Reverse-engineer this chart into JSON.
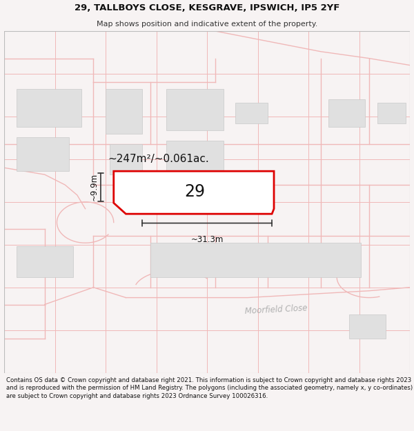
{
  "title_line1": "29, TALLBOYS CLOSE, KESGRAVE, IPSWICH, IP5 2YF",
  "title_line2": "Map shows position and indicative extent of the property.",
  "footer_text": "Contains OS data © Crown copyright and database right 2021. This information is subject to Crown copyright and database rights 2023 and is reproduced with the permission of HM Land Registry. The polygons (including the associated geometry, namely x, y co-ordinates) are subject to Crown copyright and database rights 2023 Ordnance Survey 100026316.",
  "bg_color": "#f7f3f3",
  "map_bg_color": "#ffffff",
  "plot_outline_color": "#dd0000",
  "grid_line_color": "#f0b8b8",
  "building_fill_color": "#e0e0e0",
  "building_edge_color": "#c8c8c8",
  "road_color": "#f0b8b8",
  "label_29": "29",
  "area_label": "~247m²/~0.061ac.",
  "width_label": "~31.3m",
  "height_label": "~9.9m",
  "road_label": "Moorfield Close"
}
